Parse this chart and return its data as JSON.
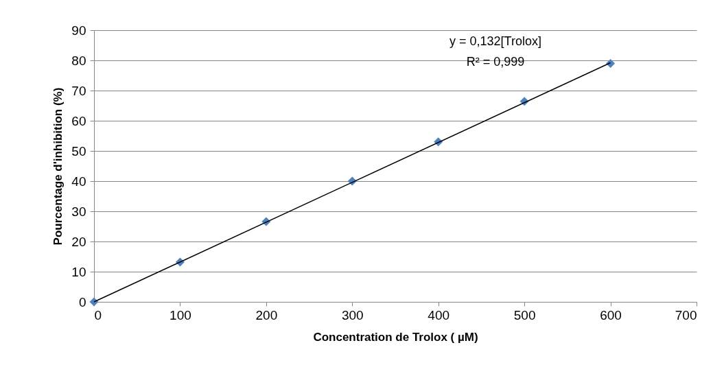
{
  "chart_data": {
    "type": "scatter",
    "xlabel": "Concentration de Trolox ( µM)",
    "ylabel": "Pourcentage d'inhibition (%)",
    "x": [
      0,
      100,
      200,
      300,
      400,
      500,
      600
    ],
    "series": [
      {
        "color": "#4f81bd",
        "values": [
          0,
          13.2,
          26.6,
          40,
          53,
          66.4,
          79
        ]
      },
      {
        "type": "line",
        "marker": "none",
        "color": "#000000",
        "x": [
          0,
          600
        ],
        "values": [
          0,
          79.2
        ]
      }
    ],
    "marker": "diamond",
    "xlim": [
      0,
      700
    ],
    "ylim": [
      0,
      90
    ],
    "xticks": [
      0,
      100,
      200,
      300,
      400,
      500,
      600,
      700
    ],
    "yticks": [
      0,
      10,
      20,
      30,
      40,
      50,
      60,
      70,
      80,
      90
    ],
    "grid": "y",
    "annotations": [
      "y = 0,132[Trolox]",
      "R² = 0,999"
    ]
  }
}
